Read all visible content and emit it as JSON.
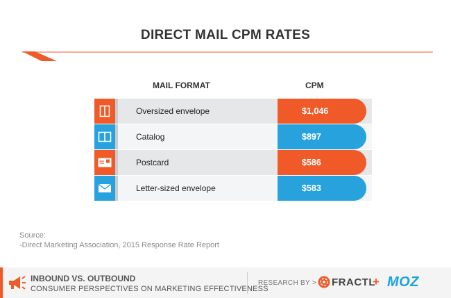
{
  "chart_data": {
    "type": "bar",
    "title": "DIRECT MAIL CPM RATES",
    "category_header": "MAIL FORMAT",
    "value_header": "CPM",
    "unit": "USD",
    "categories": [
      "Oversized envelope",
      "Catalog",
      "Postcard",
      "Letter-sized envelope"
    ],
    "values": [
      1046,
      897,
      586,
      583
    ],
    "value_labels": [
      "$1,046",
      "$897",
      "$586",
      "$583"
    ],
    "icons": [
      "oversized-envelope-icon",
      "catalog-icon",
      "postcard-icon",
      "letter-envelope-icon"
    ],
    "colors": [
      "#f05a28",
      "#27a2dc",
      "#f05a28",
      "#27a2dc"
    ],
    "row_backgrounds": [
      "#e6e7e8",
      "#f4f5f6",
      "#e6e7e8",
      "#f4f5f6"
    ]
  },
  "source": {
    "heading": "Source:",
    "text": "-Direct Marketing Association, 2015 Response Rate Report"
  },
  "footer": {
    "title": "INBOUND VS. OUTBOUND",
    "subtitle": "CONSUMER PERSPECTIVES ON MARKETING EFFECTIVENESS",
    "research_by": "RESEARCH BY >",
    "brand1": "FRACTL",
    "plus": "+",
    "brand2": "MOZ",
    "accent": "#f05a28"
  }
}
